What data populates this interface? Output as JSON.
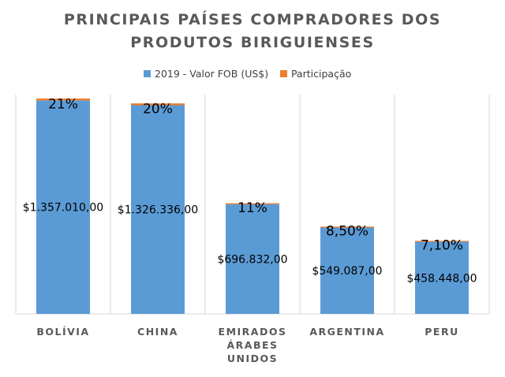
{
  "chart_data": {
    "type": "bar",
    "stacked": true,
    "title_lines": [
      "PRINCIPAIS PAÍSES COMPRADORES DOS",
      "PRODUTOS BIRIGUIENSES"
    ],
    "categories": [
      [
        "BOLÍVIA"
      ],
      [
        "CHINA"
      ],
      [
        "EMIRADOS",
        "ÁRABES",
        "UNIDOS"
      ],
      [
        "ARGENTINA"
      ],
      [
        "PERU"
      ]
    ],
    "series": [
      {
        "name": "2019 - Valor FOB (US$)",
        "color": "#5B9BD5",
        "values": [
          1357010,
          1326336,
          696832,
          549087,
          458448
        ],
        "labels": [
          "$1.357.010,00",
          "$1.326.336,00",
          "$696.832,00",
          "$549.087,00",
          "$458.448,00"
        ]
      },
      {
        "name": "Participação",
        "color": "#ED7D31",
        "values": [
          0.21,
          0.2,
          0.11,
          0.085,
          0.071
        ],
        "labels": [
          "21%",
          "20%",
          "11%",
          "8,50%",
          "7,10%"
        ]
      }
    ],
    "ylim": [
      0,
      1500000
    ],
    "grid": "vertical",
    "legend_position": "top"
  }
}
